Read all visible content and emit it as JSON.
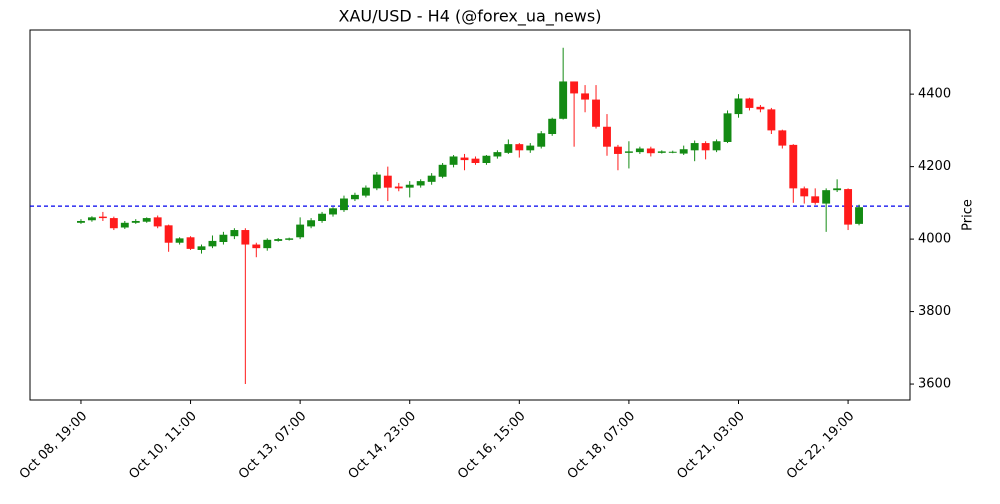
{
  "chart_data": {
    "type": "candlestick",
    "title": "XAU/USD - H4 (@forex_ua_news)",
    "y_label": "Price",
    "categories": [
      "Oct 08, 19:00",
      null,
      null,
      null,
      null,
      null,
      null,
      null,
      null,
      null,
      "Oct 10, 11:00",
      null,
      null,
      null,
      null,
      null,
      null,
      null,
      null,
      null,
      "Oct 13, 07:00",
      null,
      null,
      null,
      null,
      null,
      null,
      null,
      null,
      null,
      "Oct 14, 23:00",
      null,
      null,
      null,
      null,
      null,
      null,
      null,
      null,
      null,
      "Oct 16, 15:00",
      null,
      null,
      null,
      null,
      null,
      null,
      null,
      null,
      null,
      "Oct 18, 07:00",
      null,
      null,
      null,
      null,
      null,
      null,
      null,
      null,
      null,
      "Oct 21, 03:00",
      null,
      null,
      null,
      null,
      null,
      null,
      null,
      null,
      null,
      "Oct 22, 19:00",
      null
    ],
    "open": [
      4045,
      4052,
      4062,
      4058,
      4032,
      4045,
      4048,
      4060,
      4038,
      3990,
      4005,
      3970,
      3980,
      3992,
      4008,
      4025,
      3985,
      3975,
      3995,
      3998,
      4005,
      4035,
      4050,
      4068,
      4080,
      4110,
      4120,
      4140,
      4175,
      4145,
      4142,
      4148,
      4158,
      4172,
      4205,
      4225,
      4222,
      4210,
      4228,
      4238,
      4262,
      4245,
      4255,
      4290,
      4332,
      4435,
      4402,
      4385,
      4310,
      4255,
      4238,
      4240,
      4250,
      4238,
      4240,
      4236,
      4245,
      4265,
      4245,
      4268,
      4345,
      4388,
      4365,
      4358,
      4300,
      4260,
      4140,
      4118,
      4098,
      4135,
      4138,
      4042
    ],
    "high": [
      4055,
      4063,
      4075,
      4062,
      4050,
      4055,
      4060,
      4065,
      4040,
      4005,
      4008,
      3985,
      4010,
      4020,
      4030,
      4030,
      3990,
      4002,
      4003,
      4004,
      4060,
      4058,
      4075,
      4088,
      4120,
      4128,
      4148,
      4185,
      4200,
      4155,
      4160,
      4165,
      4182,
      4210,
      4232,
      4235,
      4228,
      4232,
      4245,
      4275,
      4265,
      4265,
      4298,
      4335,
      4528,
      4435,
      4425,
      4425,
      4345,
      4260,
      4270,
      4255,
      4255,
      4245,
      4244,
      4258,
      4272,
      4270,
      4275,
      4355,
      4400,
      4390,
      4370,
      4362,
      4302,
      4262,
      4145,
      4140,
      4140,
      4165,
      4140,
      4095
    ],
    "low": [
      4042,
      4048,
      4050,
      4025,
      4028,
      4042,
      4045,
      4030,
      3965,
      3985,
      3970,
      3960,
      3975,
      3985,
      4000,
      3600,
      3950,
      3968,
      3993,
      3996,
      4000,
      4030,
      4045,
      4062,
      4075,
      4105,
      4115,
      4135,
      4105,
      4132,
      4115,
      4142,
      4150,
      4168,
      4198,
      4190,
      4205,
      4205,
      4222,
      4235,
      4225,
      4238,
      4250,
      4285,
      4330,
      4255,
      4350,
      4305,
      4230,
      4190,
      4195,
      4235,
      4228,
      4236,
      4237,
      4232,
      4215,
      4220,
      4240,
      4265,
      4335,
      4355,
      4350,
      4290,
      4250,
      4100,
      4098,
      4095,
      4020,
      4130,
      4025,
      4038
    ],
    "close": [
      4050,
      4060,
      4058,
      4030,
      4045,
      4050,
      4058,
      4035,
      3990,
      4002,
      3973,
      3980,
      3995,
      4012,
      4025,
      3985,
      3975,
      3998,
      4000,
      4002,
      4040,
      4052,
      4070,
      4085,
      4112,
      4122,
      4142,
      4178,
      4142,
      4140,
      4150,
      4160,
      4175,
      4205,
      4228,
      4218,
      4210,
      4230,
      4240,
      4262,
      4245,
      4258,
      4292,
      4332,
      4435,
      4402,
      4385,
      4310,
      4255,
      4235,
      4242,
      4250,
      4237,
      4242,
      4241,
      4248,
      4265,
      4245,
      4270,
      4347,
      4388,
      4362,
      4358,
      4300,
      4258,
      4140,
      4118,
      4100,
      4135,
      4140,
      4040,
      4088
    ],
    "up_color": "#138a13",
    "down_color": "#ff1a1a",
    "hline": {
      "value": 4091,
      "color": "#0000ee"
    },
    "xlim": [
      -4.65,
      75.65
    ],
    "ylim": [
      3556,
      4577
    ],
    "yticks": [
      3600,
      3800,
      4000,
      4200,
      4400
    ]
  }
}
